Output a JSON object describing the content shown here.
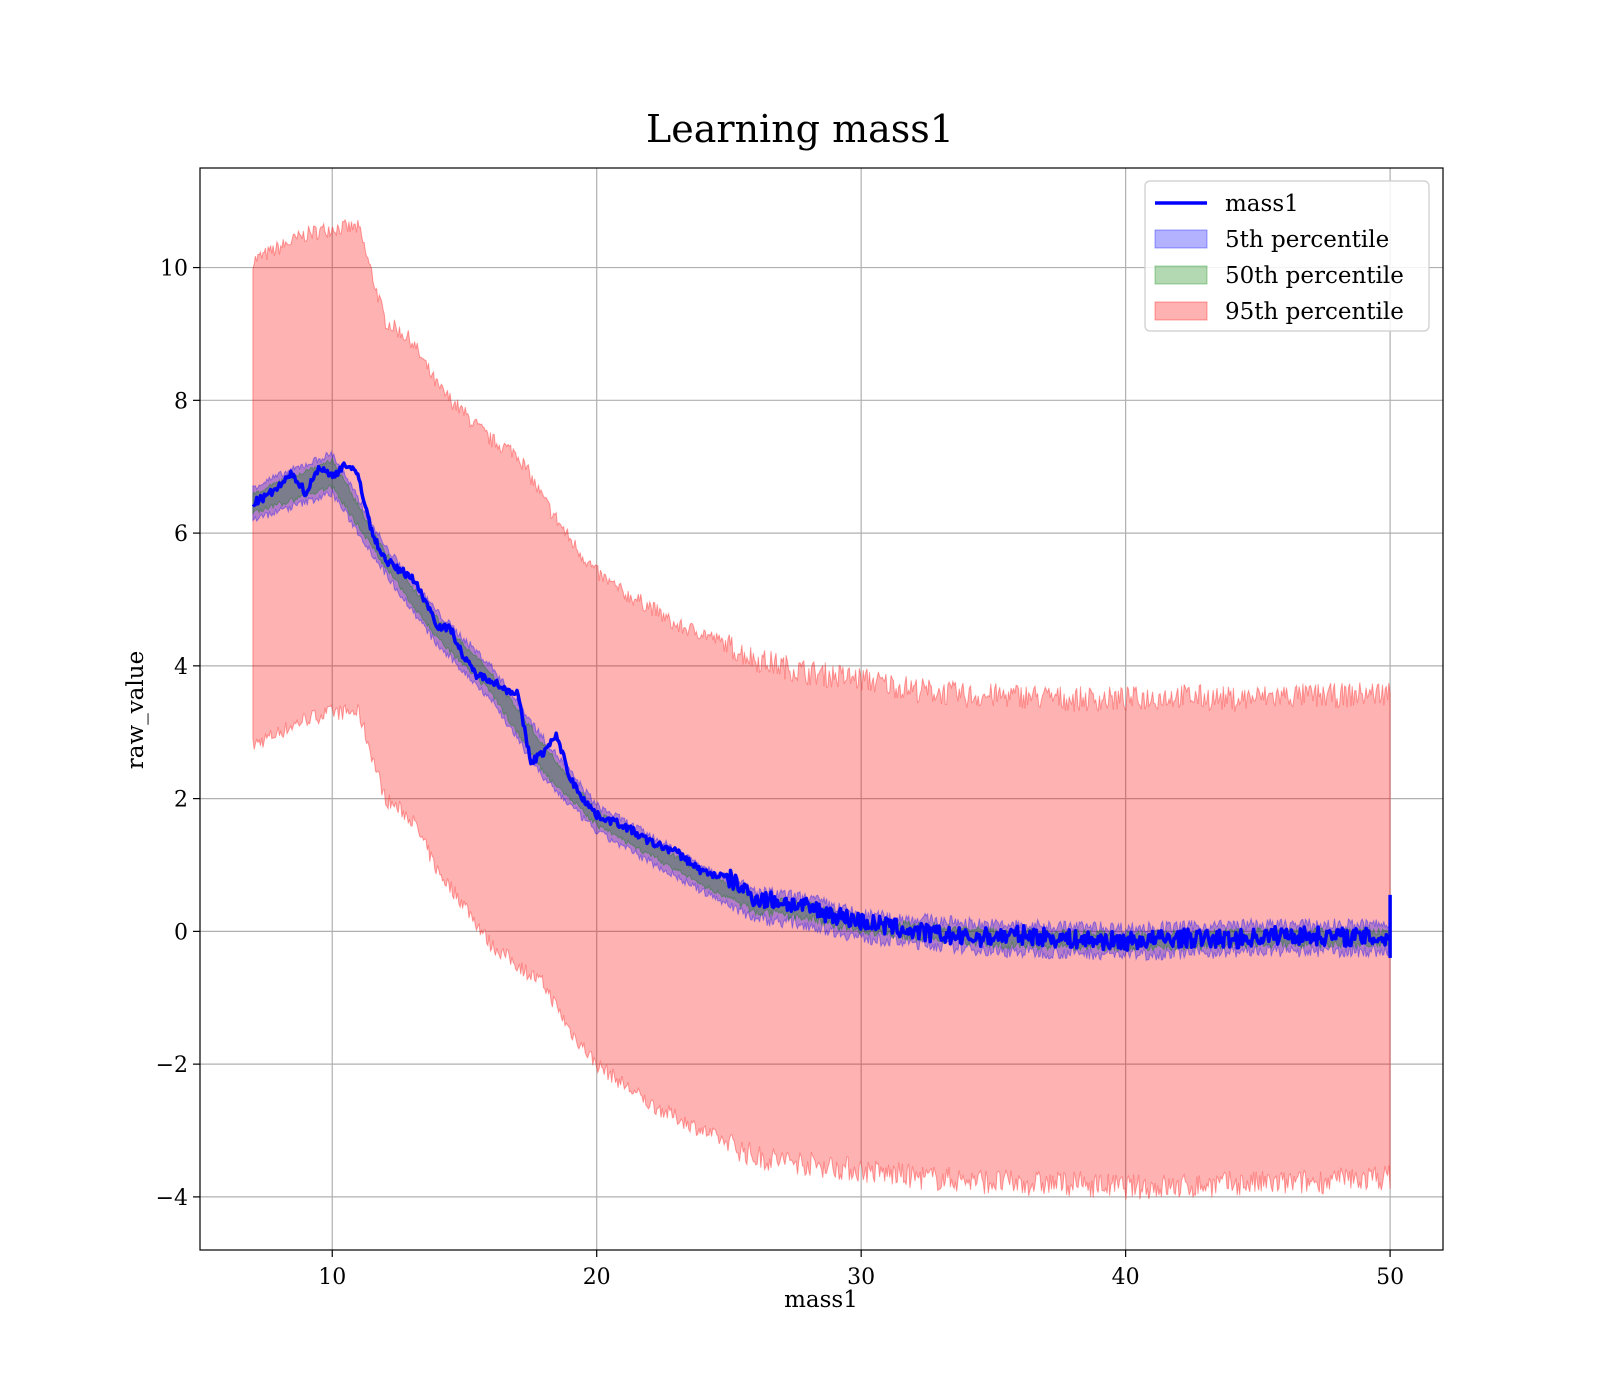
{
  "chart_data": {
    "type": "line",
    "title": "Learning mass1",
    "xlabel": "mass1",
    "ylabel": "raw_value",
    "xlim": [
      5,
      52
    ],
    "ylim": [
      -4.8,
      11.5
    ],
    "xticks": [
      10,
      20,
      30,
      40,
      50
    ],
    "yticks": [
      -4,
      -2,
      0,
      2,
      4,
      6,
      8,
      10
    ],
    "grid": true,
    "legend_position": "top-right",
    "x_range": [
      7,
      50
    ],
    "series": [
      {
        "name": "mass1",
        "kind": "line",
        "color": "#0000ff",
        "x": [
          7,
          7.5,
          8,
          8.5,
          9,
          9.5,
          10,
          10.5,
          11,
          11.5,
          12,
          12.5,
          13,
          13.5,
          14,
          14.5,
          15,
          15.5,
          16,
          16.5,
          17,
          17.5,
          18,
          18.5,
          19,
          19.5,
          20,
          21,
          22,
          23,
          24,
          25,
          26,
          27,
          28,
          29,
          30,
          32,
          34,
          36,
          38,
          40,
          42,
          44,
          46,
          48,
          50
        ],
        "y": [
          6.45,
          6.55,
          6.7,
          6.9,
          6.6,
          7.0,
          6.85,
          7.05,
          6.85,
          6.0,
          5.6,
          5.45,
          5.35,
          5.0,
          4.6,
          4.55,
          4.1,
          3.85,
          3.8,
          3.65,
          3.6,
          2.55,
          2.7,
          2.95,
          2.3,
          2.0,
          1.75,
          1.6,
          1.35,
          1.2,
          0.9,
          0.8,
          0.5,
          0.45,
          0.35,
          0.25,
          0.15,
          0.0,
          -0.1,
          -0.05,
          -0.12,
          -0.15,
          -0.1,
          -0.12,
          -0.05,
          -0.08,
          -0.1
        ]
      },
      {
        "name": "5th percentile",
        "kind": "band",
        "color": "#0000ff",
        "x": [
          7,
          10,
          12,
          14,
          16,
          18,
          20,
          22,
          24,
          26,
          28,
          30,
          35,
          40,
          45,
          50
        ],
        "lower": [
          6.2,
          6.6,
          5.4,
          4.3,
          3.5,
          2.3,
          1.5,
          1.05,
          0.6,
          0.2,
          0.1,
          -0.1,
          -0.3,
          -0.35,
          -0.3,
          -0.3
        ],
        "upper": [
          6.7,
          7.2,
          5.8,
          4.8,
          4.0,
          2.9,
          1.9,
          1.45,
          1.0,
          0.6,
          0.5,
          0.25,
          0.1,
          0.05,
          0.1,
          0.1
        ]
      },
      {
        "name": "50th percentile",
        "kind": "band",
        "color": "#008000",
        "x": [
          7,
          10,
          12,
          14,
          16,
          18,
          20,
          22,
          24,
          26,
          28,
          30,
          35,
          40,
          45,
          50
        ],
        "lower": [
          6.3,
          6.7,
          5.5,
          4.4,
          3.6,
          2.4,
          1.6,
          1.15,
          0.7,
          0.3,
          0.2,
          0.0,
          -0.2,
          -0.25,
          -0.2,
          -0.2
        ],
        "upper": [
          6.6,
          7.1,
          5.7,
          4.7,
          3.9,
          2.8,
          1.8,
          1.35,
          0.9,
          0.5,
          0.4,
          0.15,
          0.0,
          -0.05,
          0.0,
          0.0
        ]
      },
      {
        "name": "95th percentile",
        "kind": "band",
        "color": "#ff0000",
        "x": [
          7,
          8,
          9,
          10,
          11,
          12,
          13,
          14,
          15,
          16,
          17,
          18,
          19,
          20,
          21,
          22,
          23,
          24,
          25,
          26,
          27,
          28,
          29,
          30,
          32,
          34,
          36,
          38,
          40,
          42,
          44,
          46,
          48,
          50
        ],
        "upper": [
          10.1,
          10.3,
          10.5,
          10.6,
          10.6,
          9.2,
          8.9,
          8.2,
          7.8,
          7.4,
          7.2,
          6.5,
          5.9,
          5.4,
          5.1,
          4.9,
          4.6,
          4.5,
          4.3,
          4.1,
          4.0,
          3.9,
          3.85,
          3.8,
          3.65,
          3.55,
          3.55,
          3.5,
          3.5,
          3.55,
          3.5,
          3.55,
          3.55,
          3.6
        ],
        "lower": [
          2.8,
          3.0,
          3.2,
          3.3,
          3.3,
          2.0,
          1.7,
          0.9,
          0.4,
          -0.2,
          -0.5,
          -0.8,
          -1.5,
          -2.0,
          -2.3,
          -2.6,
          -2.8,
          -3.0,
          -3.2,
          -3.4,
          -3.45,
          -3.5,
          -3.55,
          -3.6,
          -3.7,
          -3.75,
          -3.8,
          -3.8,
          -3.85,
          -3.85,
          -3.8,
          -3.8,
          -3.75,
          -3.7
        ]
      }
    ]
  }
}
